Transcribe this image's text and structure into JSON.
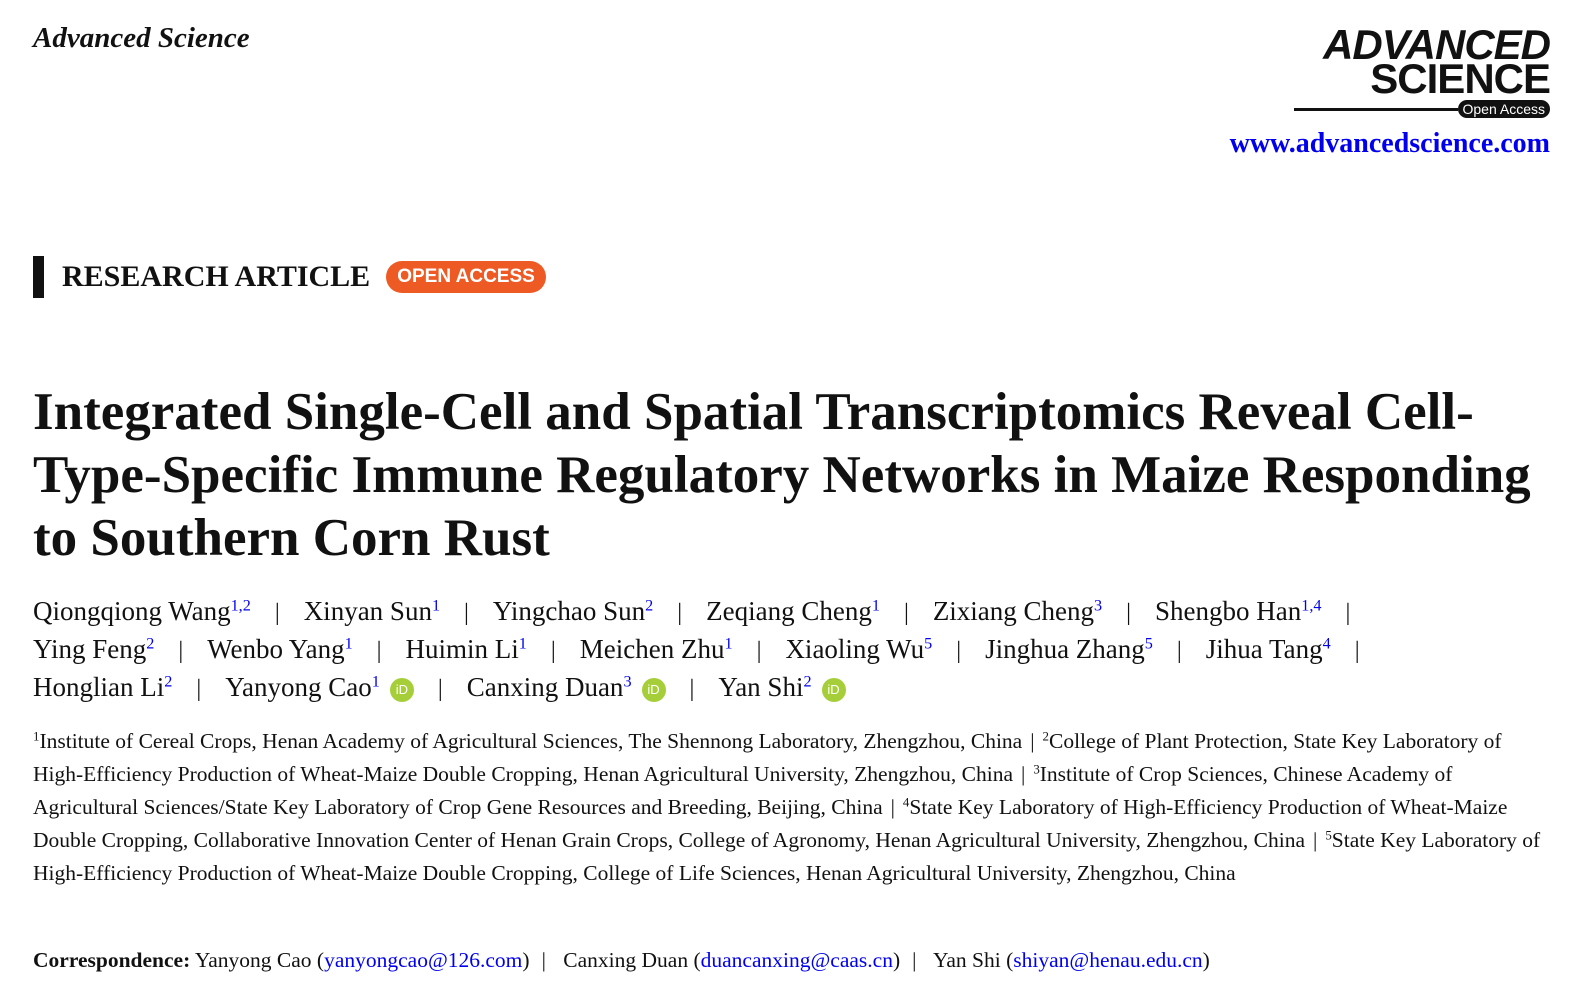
{
  "journal": "Advanced Science",
  "logo": {
    "line1": "ADVANCED",
    "line2": "SCIENCE",
    "badge": "Open Access"
  },
  "url": "www.advancedscience.com",
  "article_type": "RESEARCH ARTICLE",
  "access_badge": "OPEN ACCESS",
  "title": "Integrated Single-Cell and Spatial Transcriptomics Reveal Cell-Type-Specific Immune Regulatory Networks in Maize Responding to Southern Corn Rust",
  "separator": "|",
  "orcid_label": "iD",
  "authors": [
    {
      "name": "Qiongqiong Wang",
      "aff": "1,2"
    },
    {
      "name": "Xinyan Sun",
      "aff": "1"
    },
    {
      "name": "Yingchao Sun",
      "aff": "2"
    },
    {
      "name": "Zeqiang Cheng",
      "aff": "1"
    },
    {
      "name": "Zixiang Cheng",
      "aff": "3"
    },
    {
      "name": "Shengbo Han",
      "aff": "1,4"
    },
    {
      "name": "Ying Feng",
      "aff": "2"
    },
    {
      "name": "Wenbo Yang",
      "aff": "1"
    },
    {
      "name": "Huimin Li",
      "aff": "1"
    },
    {
      "name": "Meichen Zhu",
      "aff": "1"
    },
    {
      "name": "Xiaoling Wu",
      "aff": "5"
    },
    {
      "name": "Jinghua Zhang",
      "aff": "5"
    },
    {
      "name": "Jihua Tang",
      "aff": "4"
    },
    {
      "name": "Honglian Li",
      "aff": "2"
    },
    {
      "name": "Yanyong Cao",
      "aff": "1",
      "orcid": true
    },
    {
      "name": "Canxing Duan",
      "aff": "3",
      "orcid": true
    },
    {
      "name": "Yan Shi",
      "aff": "2",
      "orcid": true
    }
  ],
  "affiliations": [
    {
      "num": "1",
      "text": "Institute of Cereal Crops, Henan Academy of Agricultural Sciences, The Shennong Laboratory, Zhengzhou, China"
    },
    {
      "num": "2",
      "text": "College of Plant Protection, State Key Laboratory of High-Efficiency Production of Wheat-Maize Double Cropping, Henan Agricultural University, Zhengzhou, China"
    },
    {
      "num": "3",
      "text": "Institute of Crop Sciences, Chinese Academy of Agricultural Sciences/State Key Laboratory of Crop Gene Resources and Breeding, Beijing, China"
    },
    {
      "num": "4",
      "text": "State Key Laboratory of High-Efficiency Production of Wheat-Maize Double Cropping, Collaborative Innovation Center of Henan Grain Crops, College of Agronomy, Henan Agricultural University, Zhengzhou, China"
    },
    {
      "num": "5",
      "text": "State Key Laboratory of High-Efficiency Production of Wheat-Maize Double Cropping, College of Life Sciences, Henan Agricultural University, Zhengzhou, China"
    }
  ],
  "correspondence": {
    "label": "Correspondence:",
    "entries": [
      {
        "name": "Yanyong Cao",
        "email": "yanyongcao@126.com"
      },
      {
        "name": "Canxing Duan",
        "email": "duancanxing@caas.cn"
      },
      {
        "name": "Yan Shi",
        "email": "shiyan@henau.edu.cn"
      }
    ]
  }
}
